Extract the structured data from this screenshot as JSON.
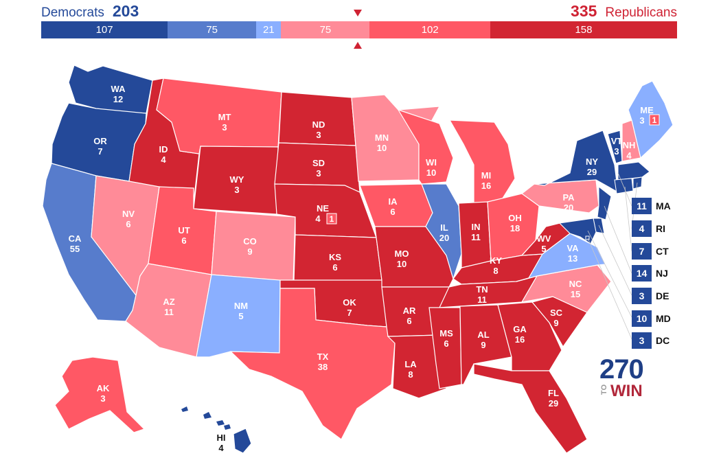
{
  "header": {
    "dem": {
      "party": "Democrats",
      "total": "203",
      "color": "#244999"
    },
    "rep": {
      "party": "Republicans",
      "total": "335",
      "color": "#cf2233"
    }
  },
  "summary_bar": [
    {
      "label": "107",
      "value": 107,
      "category": "safe-dem"
    },
    {
      "label": "75",
      "value": 75,
      "category": "likely-dem"
    },
    {
      "label": "21",
      "value": 21,
      "category": "lean-dem"
    },
    {
      "label": "75",
      "value": 75,
      "category": "lean-rep"
    },
    {
      "label": "102",
      "value": 102,
      "category": "likely-rep"
    },
    {
      "label": "158",
      "value": 158,
      "category": "safe-rep"
    }
  ],
  "colors": {
    "safe-dem": "#244999",
    "likely-dem": "#577ccc",
    "lean-dem": "#8aafff",
    "lean-rep": "#ff8b98",
    "likely-rep": "#ff5865",
    "safe-rep": "#d22532"
  },
  "states": [
    {
      "abbr": "WA",
      "ev": "12",
      "category": "safe-dem"
    },
    {
      "abbr": "OR",
      "ev": "7",
      "category": "safe-dem"
    },
    {
      "abbr": "CA",
      "ev": "55",
      "category": "likely-dem"
    },
    {
      "abbr": "ID",
      "ev": "4",
      "category": "safe-rep"
    },
    {
      "abbr": "NV",
      "ev": "6",
      "category": "lean-rep"
    },
    {
      "abbr": "MT",
      "ev": "3",
      "category": "likely-rep"
    },
    {
      "abbr": "WY",
      "ev": "3",
      "category": "safe-rep"
    },
    {
      "abbr": "UT",
      "ev": "6",
      "category": "likely-rep"
    },
    {
      "abbr": "AZ",
      "ev": "11",
      "category": "lean-rep"
    },
    {
      "abbr": "CO",
      "ev": "9",
      "category": "lean-rep"
    },
    {
      "abbr": "NM",
      "ev": "5",
      "category": "lean-dem"
    },
    {
      "abbr": "ND",
      "ev": "3",
      "category": "safe-rep"
    },
    {
      "abbr": "SD",
      "ev": "3",
      "category": "safe-rep"
    },
    {
      "abbr": "NE",
      "ev": "4",
      "category": "safe-rep"
    },
    {
      "abbr": "KS",
      "ev": "6",
      "category": "safe-rep"
    },
    {
      "abbr": "OK",
      "ev": "7",
      "category": "safe-rep"
    },
    {
      "abbr": "TX",
      "ev": "38",
      "category": "likely-rep"
    },
    {
      "abbr": "MN",
      "ev": "10",
      "category": "lean-rep"
    },
    {
      "abbr": "IA",
      "ev": "6",
      "category": "likely-rep"
    },
    {
      "abbr": "MO",
      "ev": "10",
      "category": "safe-rep"
    },
    {
      "abbr": "AR",
      "ev": "6",
      "category": "safe-rep"
    },
    {
      "abbr": "LA",
      "ev": "8",
      "category": "safe-rep"
    },
    {
      "abbr": "WI",
      "ev": "10",
      "category": "likely-rep"
    },
    {
      "abbr": "IL",
      "ev": "20",
      "category": "likely-dem"
    },
    {
      "abbr": "MI",
      "ev": "16",
      "category": "likely-rep"
    },
    {
      "abbr": "IN",
      "ev": "11",
      "category": "safe-rep"
    },
    {
      "abbr": "OH",
      "ev": "18",
      "category": "likely-rep"
    },
    {
      "abbr": "KY",
      "ev": "8",
      "category": "safe-rep"
    },
    {
      "abbr": "TN",
      "ev": "11",
      "category": "safe-rep"
    },
    {
      "abbr": "MS",
      "ev": "6",
      "category": "safe-rep"
    },
    {
      "abbr": "AL",
      "ev": "9",
      "category": "safe-rep"
    },
    {
      "abbr": "GA",
      "ev": "16",
      "category": "safe-rep"
    },
    {
      "abbr": "FL",
      "ev": "29",
      "category": "safe-rep"
    },
    {
      "abbr": "SC",
      "ev": "9",
      "category": "safe-rep"
    },
    {
      "abbr": "NC",
      "ev": "15",
      "category": "lean-rep"
    },
    {
      "abbr": "VA",
      "ev": "13",
      "category": "lean-dem"
    },
    {
      "abbr": "WV",
      "ev": "5",
      "category": "safe-rep"
    },
    {
      "abbr": "PA",
      "ev": "20",
      "category": "lean-rep"
    },
    {
      "abbr": "NY",
      "ev": "29",
      "category": "safe-dem"
    },
    {
      "abbr": "VT",
      "ev": "3",
      "category": "safe-dem"
    },
    {
      "abbr": "NH",
      "ev": "4",
      "category": "lean-rep"
    },
    {
      "abbr": "ME",
      "ev": "3",
      "category": "lean-dem"
    },
    {
      "abbr": "AK",
      "ev": "3",
      "category": "likely-rep"
    },
    {
      "abbr": "HI",
      "ev": "4",
      "category": "safe-dem"
    }
  ],
  "district_boxes": [
    {
      "state": "ME",
      "ev": "1",
      "category": "likely-rep"
    },
    {
      "state": "NE",
      "ev": "1",
      "category": "likely-rep"
    }
  ],
  "small_states": [
    {
      "abbr": "MA",
      "ev": "11",
      "category": "safe-dem"
    },
    {
      "abbr": "RI",
      "ev": "4",
      "category": "safe-dem"
    },
    {
      "abbr": "CT",
      "ev": "7",
      "category": "safe-dem"
    },
    {
      "abbr": "NJ",
      "ev": "14",
      "category": "safe-dem"
    },
    {
      "abbr": "DE",
      "ev": "3",
      "category": "safe-dem"
    },
    {
      "abbr": "MD",
      "ev": "10",
      "category": "safe-dem"
    },
    {
      "abbr": "DC",
      "ev": "3",
      "category": "safe-dem"
    }
  ],
  "logo": {
    "number": "270",
    "to": "TO",
    "win": "WIN"
  }
}
